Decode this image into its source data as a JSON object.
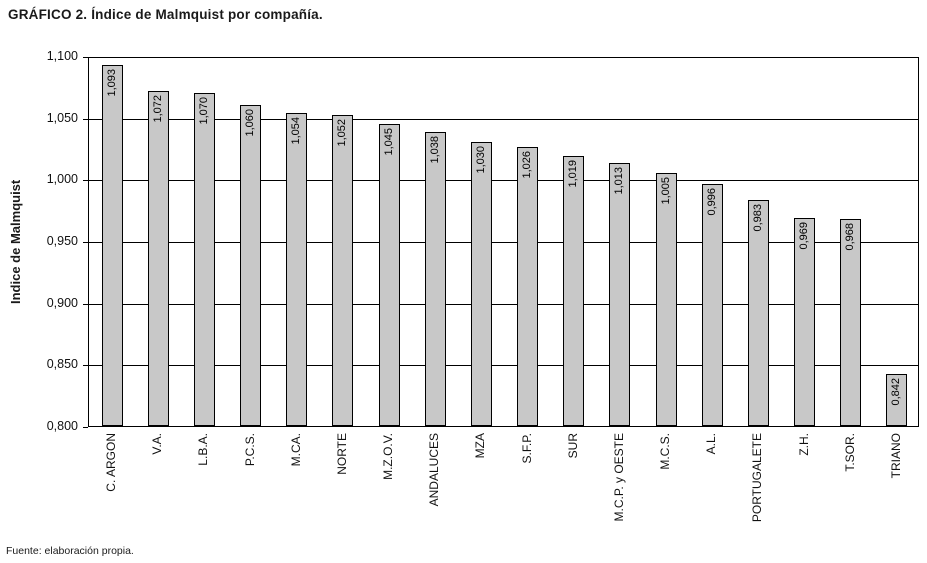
{
  "footer": "Fuente: elaboración propia.",
  "chart_data": {
    "type": "bar",
    "title": "GRÁFICO 2. Índice de Malmquist por compañía.",
    "xlabel": "",
    "ylabel": "Indice de Malmquist",
    "ylim": [
      0.8,
      1.1
    ],
    "ytick_step": 0.05,
    "yticks": [
      "1,100",
      "1,050",
      "1,000",
      "0,950",
      "0,900",
      "0,850",
      "0,800"
    ],
    "grid": true,
    "legend": false,
    "bar_color": "#c8c8c8",
    "bar_border_color": "#000000",
    "categories": [
      "C. ARGON",
      "V.A.",
      "L.B.A.",
      "P.C.S.",
      "M.CA.",
      "NORTE",
      "M.Z.O.V.",
      "ANDALUCES",
      "MZA",
      "S.F.P.",
      "SUR",
      "M.C.P. y OESTE",
      "M.C.S.",
      "A.L.",
      "PORTUGALETE",
      "Z.H.",
      "T.SOR.",
      "TRIANO"
    ],
    "values": [
      1.093,
      1.072,
      1.07,
      1.06,
      1.054,
      1.052,
      1.045,
      1.038,
      1.03,
      1.026,
      1.019,
      1.013,
      1.005,
      0.996,
      0.983,
      0.969,
      0.968,
      0.842
    ],
    "value_labels": [
      "1,093",
      "1,072",
      "1,070",
      "1,060",
      "1,054",
      "1,052",
      "1,045",
      "1,038",
      "1,030",
      "1,026",
      "1,019",
      "1,013",
      "1,005",
      "0,996",
      "0,983",
      "0,969",
      "0,968",
      "0,842"
    ]
  }
}
